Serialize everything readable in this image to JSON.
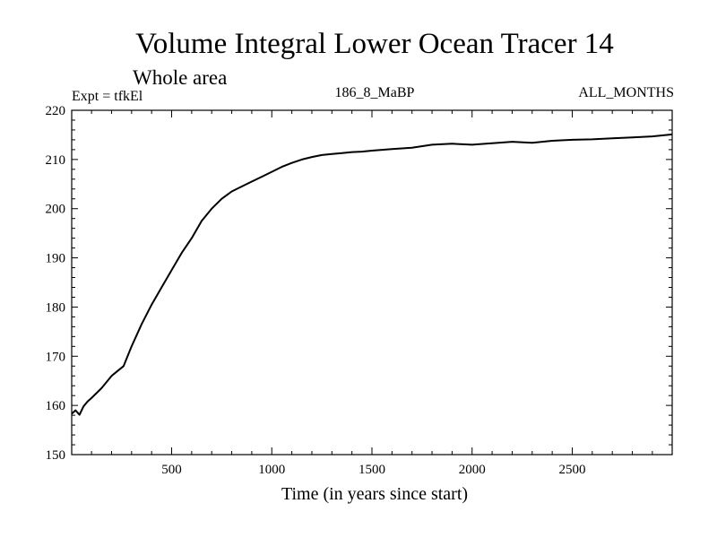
{
  "chart_data": {
    "type": "line",
    "title": "Volume Integral Lower Ocean Tracer 14",
    "subtitle": "Whole area",
    "annotations": {
      "left": "Expt = tfkEl",
      "center": "186_8_MaBP",
      "right": "ALL_MONTHS"
    },
    "xlabel": "Time (in years since start)",
    "ylabel": "",
    "xlim": [
      1,
      2999
    ],
    "ylim": [
      150,
      220
    ],
    "xticks": [
      500,
      1000,
      1500,
      2000,
      2500
    ],
    "yticks": [
      150,
      160,
      170,
      180,
      190,
      200,
      210,
      220
    ],
    "grid": false,
    "series": [
      {
        "color": "#000000",
        "x": [
          1,
          20,
          40,
          60,
          80,
          100,
          150,
          200,
          230,
          260,
          300,
          350,
          400,
          450,
          500,
          550,
          600,
          650,
          700,
          750,
          800,
          850,
          900,
          950,
          1000,
          1050,
          1100,
          1150,
          1200,
          1250,
          1300,
          1350,
          1400,
          1450,
          1500,
          1600,
          1700,
          1800,
          1900,
          2000,
          2100,
          2200,
          2300,
          2400,
          2500,
          2600,
          2700,
          2800,
          2900,
          2999
        ],
        "y": [
          158.3,
          159.0,
          158.1,
          159.8,
          160.8,
          161.5,
          163.5,
          166.0,
          167.0,
          168.0,
          172.0,
          176.5,
          180.5,
          184.0,
          187.5,
          191.0,
          194.0,
          197.5,
          200.0,
          202.0,
          203.5,
          204.5,
          205.5,
          206.5,
          207.5,
          208.5,
          209.3,
          210.0,
          210.5,
          210.9,
          211.1,
          211.3,
          211.5,
          211.6,
          211.8,
          212.1,
          212.4,
          213.0,
          213.2,
          213.0,
          213.3,
          213.6,
          213.4,
          213.8,
          214.0,
          214.1,
          214.3,
          214.5,
          214.7,
          215.1
        ]
      }
    ]
  }
}
